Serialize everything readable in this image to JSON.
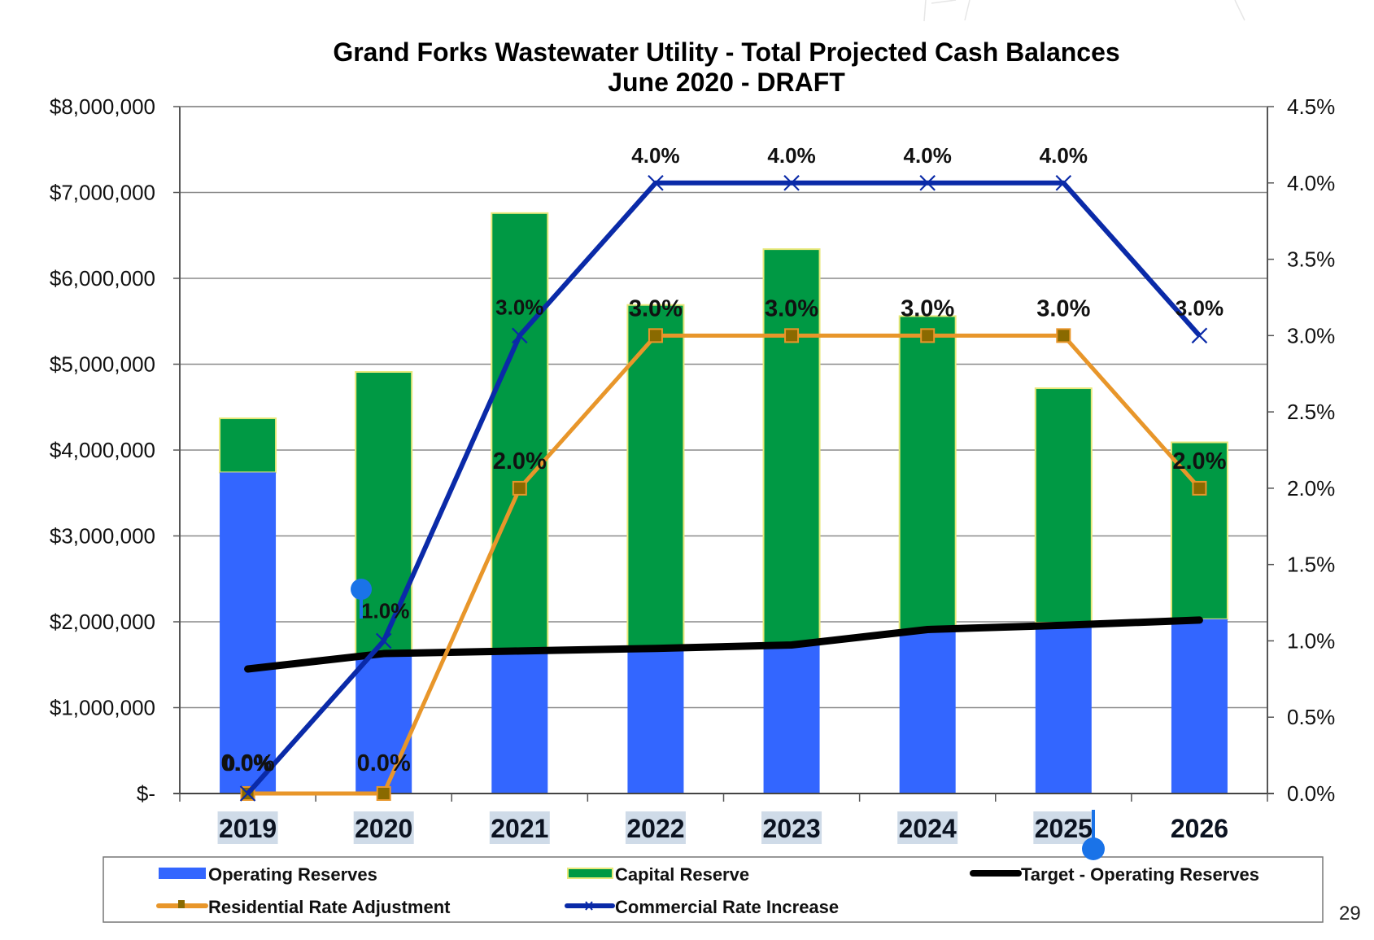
{
  "page": {
    "page_number": "29"
  },
  "selection": {
    "highlighted_labels": [
      "2019",
      "2020",
      "2021",
      "2022",
      "2023",
      "2024",
      "2025"
    ],
    "highlight_color": "#cfdbe8",
    "handle_color": "#1a73e8"
  },
  "chart_data": {
    "type": "bar",
    "subtype": "stacked-bar-with-lines-dual-axis",
    "title": "Grand Forks Wastewater Utility  - Total Projected Cash Balances",
    "subtitle": "June 2020 - DRAFT",
    "xlabel": "",
    "ylabel": "",
    "categories": [
      "2019",
      "2020",
      "2021",
      "2022",
      "2023",
      "2024",
      "2025",
      "2026"
    ],
    "y_left": {
      "min": 0,
      "max": 8000000,
      "step": 1000000,
      "tick_labels": [
        "$-",
        "$1,000,000",
        "$2,000,000",
        "$3,000,000",
        "$4,000,000",
        "$5,000,000",
        "$6,000,000",
        "$7,000,000",
        "$8,000,000"
      ]
    },
    "y_right": {
      "min": 0,
      "max": 4.5,
      "step": 0.5,
      "tick_labels": [
        "0.0%",
        "0.5%",
        "1.0%",
        "1.5%",
        "2.0%",
        "2.5%",
        "3.0%",
        "3.5%",
        "4.0%",
        "4.5%"
      ]
    },
    "grid": true,
    "legend_position": "bottom",
    "series": [
      {
        "name": "Operating Reserves",
        "kind": "bar",
        "axis": "left",
        "color": "#3366ff",
        "values": [
          3740000,
          1610000,
          1640000,
          1690000,
          1730000,
          1910000,
          1990000,
          2030000
        ]
      },
      {
        "name": "Capital Reserve",
        "kind": "bar",
        "axis": "left",
        "color": "#009944",
        "border": "#e8e87a",
        "values": [
          630000,
          3300000,
          5120000,
          4000000,
          4610000,
          3650000,
          2730000,
          2060000
        ]
      },
      {
        "name": "Target - Operating Reserves",
        "kind": "line",
        "axis": "left",
        "color": "#000000",
        "values": [
          1450000,
          1630000,
          1660000,
          1690000,
          1730000,
          1910000,
          1960000,
          2020000
        ]
      },
      {
        "name": "Residential Rate Adjustment",
        "kind": "line",
        "axis": "right",
        "color": "#e8962a",
        "marker": "square",
        "marker_color": "#8a6a00",
        "values": [
          0.0,
          0.0,
          2.0,
          3.0,
          3.0,
          3.0,
          3.0,
          2.0
        ],
        "labels": [
          "0.0%",
          "0.0%",
          "2.0%",
          "3.0%",
          "3.0%",
          "3.0%",
          "3.0%",
          "2.0%"
        ]
      },
      {
        "name": "Commercial Rate Increase",
        "kind": "line",
        "axis": "right",
        "color": "#0a2aa8",
        "marker": "x",
        "values": [
          0.0,
          1.0,
          3.0,
          4.0,
          4.0,
          4.0,
          4.0,
          3.0
        ],
        "labels": [
          "0.0%",
          "1.0%",
          "3.0%",
          "4.0%",
          "4.0%",
          "4.0%",
          "4.0%",
          "3.0%"
        ]
      }
    ],
    "legend": [
      {
        "label": "Operating Reserves",
        "swatch": "bar",
        "color": "#3366ff"
      },
      {
        "label": "Capital Reserve",
        "swatch": "bar",
        "color": "#009944"
      },
      {
        "label": "Target - Operating Reserves",
        "swatch": "line",
        "color": "#000000"
      },
      {
        "label": "Residential Rate Adjustment",
        "swatch": "line-square",
        "color": "#e8962a"
      },
      {
        "label": "Commercial Rate Increase",
        "swatch": "line-x",
        "color": "#0a2aa8"
      }
    ]
  }
}
